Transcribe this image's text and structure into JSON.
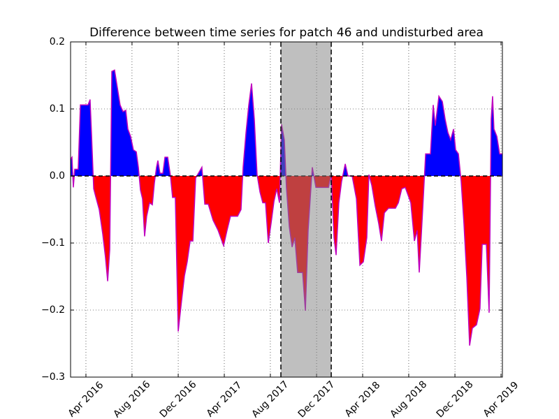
{
  "chart_data": {
    "type": "area",
    "title": "Difference between time series for patch 46 and undisturbed area",
    "x": [
      2016.139,
      2016.149,
      2016.159,
      2016.169,
      2016.194,
      2016.21,
      2016.265,
      2016.28,
      2016.29,
      2016.306,
      2016.321,
      2016.346,
      2016.371,
      2016.391,
      2016.407,
      2016.422,
      2016.437,
      2016.457,
      2016.477,
      2016.497,
      2016.518,
      2016.538,
      2016.553,
      2016.573,
      2016.593,
      2016.614,
      2016.629,
      2016.644,
      2016.659,
      2016.674,
      2016.689,
      2016.71,
      2016.73,
      2016.745,
      2016.76,
      2016.77,
      2016.785,
      2016.806,
      2016.821,
      2016.841,
      2016.861,
      2016.876,
      2016.896,
      2016.917,
      2016.942,
      2016.962,
      2016.982,
      2017.003,
      2017.023,
      2017.043,
      2017.063,
      2017.088,
      2017.109,
      2017.134,
      2017.169,
      2017.205,
      2017.245,
      2017.27,
      2017.295,
      2017.346,
      2017.371,
      2017.386,
      2017.407,
      2017.427,
      2017.447,
      2017.467,
      2017.487,
      2017.508,
      2017.528,
      2017.548,
      2017.568,
      2017.588,
      2017.609,
      2017.629,
      2017.649,
      2017.664,
      2017.684,
      2017.699,
      2017.72,
      2017.74,
      2017.76,
      2017.78,
      2017.816,
      2017.836,
      2017.856,
      2017.886,
      2017.912,
      2017.942,
      2018.003,
      2018.023,
      2018.043,
      2018.058,
      2018.078,
      2018.098,
      2018.124,
      2018.144,
      2018.174,
      2018.205,
      2018.23,
      2018.255,
      2018.28,
      2018.295,
      2018.316,
      2018.341,
      2018.366,
      2018.386,
      2018.407,
      2018.437,
      2018.487,
      2018.508,
      2018.533,
      2018.558,
      2018.598,
      2018.624,
      2018.644,
      2018.659,
      2018.684,
      2018.705,
      2018.74,
      2018.76,
      2018.775,
      2018.801,
      2018.826,
      2018.846,
      2018.866,
      2018.886,
      2018.907,
      2018.922,
      2018.942,
      2018.962,
      2018.982,
      2019.003,
      2019.023,
      2019.043,
      2019.073,
      2019.098,
      2019.114,
      2019.144,
      2019.164,
      2019.179,
      2019.189,
      2019.199,
      2019.22,
      2019.24,
      2019.26
    ],
    "values": [
      0.025,
      0.028,
      -0.017,
      0.01,
      0.01,
      0.106,
      0.106,
      0.114,
      0.065,
      -0.019,
      -0.031,
      -0.05,
      -0.086,
      -0.121,
      -0.157,
      -0.11,
      0.156,
      0.158,
      0.132,
      0.106,
      0.096,
      0.098,
      0.07,
      0.059,
      0.039,
      0.036,
      0.013,
      -0.021,
      -0.034,
      -0.09,
      -0.06,
      -0.04,
      -0.043,
      -0.01,
      0.013,
      0.023,
      0.004,
      0.004,
      0.028,
      0.028,
      0,
      -0.032,
      -0.032,
      -0.232,
      -0.185,
      -0.149,
      -0.128,
      -0.097,
      -0.097,
      -0.003,
      0.004,
      0.013,
      -0.042,
      -0.042,
      -0.066,
      -0.081,
      -0.104,
      -0.081,
      -0.06,
      -0.06,
      -0.05,
      0.013,
      0.065,
      0.106,
      0.138,
      0.085,
      0.002,
      -0.024,
      -0.04,
      -0.04,
      -0.1,
      -0.071,
      -0.038,
      -0.019,
      -0.04,
      0.077,
      0.054,
      -0.017,
      -0.076,
      -0.106,
      -0.092,
      -0.144,
      -0.144,
      -0.201,
      -0.081,
      0.013,
      -0.017,
      -0.017,
      -0.017,
      0.002,
      -0.092,
      -0.118,
      -0.04,
      -0.008,
      0.018,
      0,
      0,
      -0.034,
      -0.133,
      -0.128,
      -0.092,
      0.002,
      -0.014,
      -0.045,
      -0.071,
      -0.097,
      -0.055,
      -0.048,
      -0.048,
      -0.04,
      -0.019,
      -0.017,
      -0.04,
      -0.097,
      -0.081,
      -0.144,
      -0.05,
      0.033,
      0.033,
      0.106,
      0.075,
      0.119,
      0.111,
      0.085,
      0.065,
      0.054,
      0.07,
      0.039,
      0.033,
      -0.008,
      -0.071,
      -0.152,
      -0.253,
      -0.227,
      -0.222,
      -0.198,
      -0.102,
      -0.102,
      -0.204,
      0.085,
      0.119,
      0.07,
      0.059,
      0.033,
      0.033
    ],
    "positive_color": "#0000ff",
    "negative_color": "#ff0000",
    "line_color": "#bf00bf",
    "highlight": [
      2017.659,
      2018.023
    ],
    "highlight_color": "#808080",
    "xlim": [
      2016.139,
      2019.26
    ],
    "ylim": [
      -0.3,
      0.2
    ],
    "xticks": [
      {
        "value": 2016.25,
        "label": "Apr 2016"
      },
      {
        "value": 2016.583,
        "label": "Aug 2016"
      },
      {
        "value": 2016.917,
        "label": "Dec 2016"
      },
      {
        "value": 2017.25,
        "label": "Apr 2017"
      },
      {
        "value": 2017.583,
        "label": "Aug 2017"
      },
      {
        "value": 2017.917,
        "label": "Dec 2017"
      },
      {
        "value": 2018.25,
        "label": "Apr 2018"
      },
      {
        "value": 2018.583,
        "label": "Aug 2018"
      },
      {
        "value": 2018.917,
        "label": "Dec 2018"
      },
      {
        "value": 2019.25,
        "label": "Apr 2019"
      }
    ],
    "yticks": [
      {
        "value": -0.3,
        "label": "−0.3"
      },
      {
        "value": -0.2,
        "label": "−0.2"
      },
      {
        "value": -0.1,
        "label": "−0.1"
      },
      {
        "value": 0,
        "label": "0.0"
      },
      0.1,
      0.2
    ],
    "grid": true
  }
}
